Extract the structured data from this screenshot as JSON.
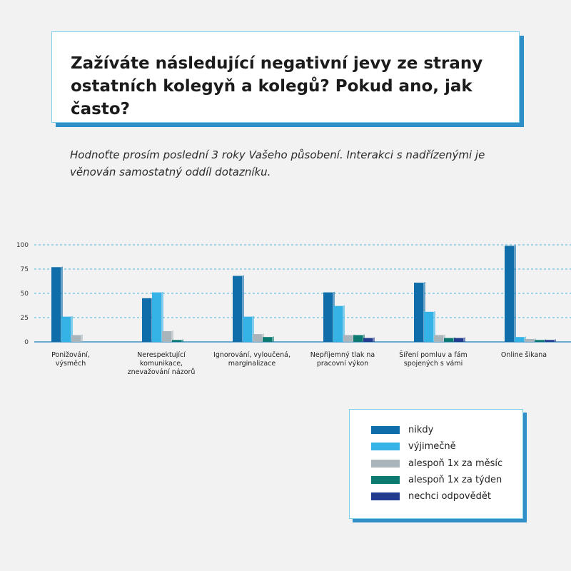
{
  "header": {
    "title": "Zažíváte následující negativní jevy ze strany ostatních kolegyň a kolegů? Pokud ano, jak často?",
    "subtitle": "Hodnoťte prosím poslední 3 roky Vašeho působení. Interakci s nadřízenými je věnován samostatný oddíl dotazníku."
  },
  "chart_data": {
    "type": "bar",
    "categories": [
      [
        "Ponižování,",
        "výsměch"
      ],
      [
        "Nerespektující",
        "komunikace,",
        "znevažování názorů"
      ],
      [
        "Ignorování, vyloučená,",
        "marginalizace"
      ],
      [
        "Nepříjemný tlak na",
        "pracovní výkon"
      ],
      [
        "Šíření pomluv a fám",
        "spojených s vámi"
      ],
      [
        "Online šikana"
      ]
    ],
    "series": [
      {
        "name": "nikdy",
        "color": "#0f6eaa",
        "values": [
          77,
          45,
          68,
          51,
          61,
          99
        ]
      },
      {
        "name": "výjimečně",
        "color": "#35b3e6",
        "values": [
          26,
          51,
          26,
          37,
          31,
          5
        ]
      },
      {
        "name": "alespoň 1x za měsíc",
        "color": "#aab4bb",
        "values": [
          7,
          11,
          8,
          7,
          7,
          3
        ]
      },
      {
        "name": "alespoň 1x za týden",
        "color": "#0c7a70",
        "values": [
          0,
          2,
          5,
          7,
          4,
          2
        ]
      },
      {
        "name": "nechci odpovědět",
        "color": "#233b8f",
        "values": [
          0,
          0,
          0,
          4,
          4,
          2
        ]
      }
    ],
    "yticks": [
      0,
      25,
      50,
      75,
      100
    ],
    "ylim": [
      0,
      100
    ],
    "grid": true,
    "legend_position": "bottom-right"
  }
}
